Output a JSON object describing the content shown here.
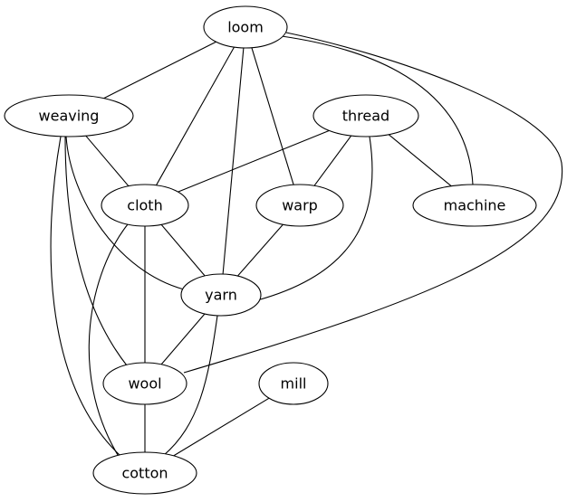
{
  "graph": {
    "nodes": [
      {
        "id": "loom",
        "label": "loom"
      },
      {
        "id": "weaving",
        "label": "weaving"
      },
      {
        "id": "thread",
        "label": "thread"
      },
      {
        "id": "cloth",
        "label": "cloth"
      },
      {
        "id": "warp",
        "label": "warp"
      },
      {
        "id": "machine",
        "label": "machine"
      },
      {
        "id": "yarn",
        "label": "yarn"
      },
      {
        "id": "wool",
        "label": "wool"
      },
      {
        "id": "mill",
        "label": "mill"
      },
      {
        "id": "cotton",
        "label": "cotton"
      }
    ],
    "edges": [
      {
        "from": "loom",
        "to": "weaving"
      },
      {
        "from": "loom",
        "to": "cloth"
      },
      {
        "from": "loom",
        "to": "yarn"
      },
      {
        "from": "loom",
        "to": "warp"
      },
      {
        "from": "loom",
        "to": "machine"
      },
      {
        "from": "loom",
        "to": "wool"
      },
      {
        "from": "weaving",
        "to": "cloth"
      },
      {
        "from": "weaving",
        "to": "yarn"
      },
      {
        "from": "weaving",
        "to": "wool"
      },
      {
        "from": "weaving",
        "to": "cotton"
      },
      {
        "from": "thread",
        "to": "cloth"
      },
      {
        "from": "thread",
        "to": "warp"
      },
      {
        "from": "thread",
        "to": "machine"
      },
      {
        "from": "thread",
        "to": "yarn"
      },
      {
        "from": "cloth",
        "to": "yarn"
      },
      {
        "from": "cloth",
        "to": "wool"
      },
      {
        "from": "cloth",
        "to": "cotton"
      },
      {
        "from": "warp",
        "to": "yarn"
      },
      {
        "from": "yarn",
        "to": "wool"
      },
      {
        "from": "yarn",
        "to": "cotton"
      },
      {
        "from": "wool",
        "to": "cotton"
      },
      {
        "from": "mill",
        "to": "cotton"
      }
    ]
  }
}
